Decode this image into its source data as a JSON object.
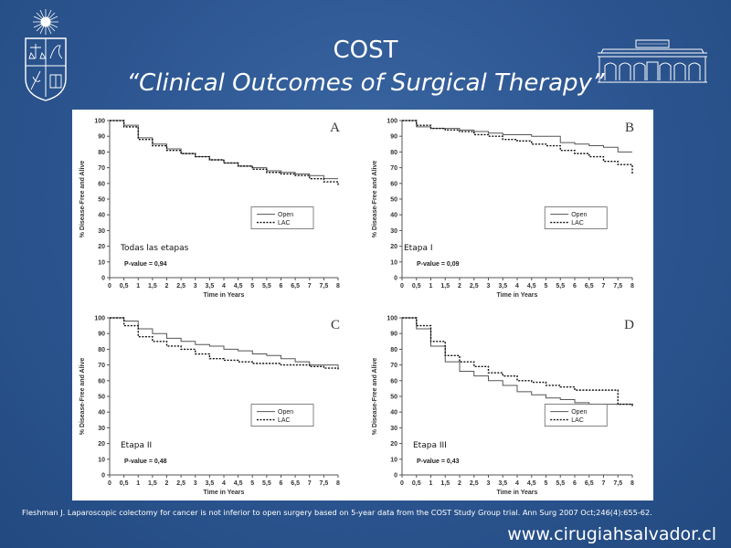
{
  "title": "COST",
  "subtitle": "“Clinical Outcomes of Surgical Therapy”",
  "citation": "Fleshman J. Laparoscopic colectomy for cancer is not inferior to open surgery based on 5-year data from the COST Study Group trial. Ann Surg 2007 Oct;246(4):655-62.",
  "website": "www.cirugiahsalvador.cl",
  "colors": {
    "background": "#2c5590",
    "panel": "#ffffff",
    "text": "#ffffff"
  },
  "chart_data": [
    {
      "type": "line",
      "panel": "A",
      "stage_label": "Todas las etapas",
      "p_value": "P-value = 0,94",
      "xlabel": "Time in Years",
      "ylabel": "% Disease-Free and Alive",
      "xlim": [
        0,
        8
      ],
      "ylim": [
        0,
        100
      ],
      "x_ticks": [
        "0",
        "0,5",
        "1",
        "1,5",
        "2",
        "2,5",
        "3",
        "3,5",
        "4",
        "4,5",
        "5",
        "5,5",
        "6",
        "6,5",
        "7",
        "7,5",
        "8"
      ],
      "y_ticks": [
        "0",
        "10",
        "20",
        "30",
        "40",
        "50",
        "60",
        "70",
        "80",
        "90",
        "100"
      ],
      "legend_position": "center-right",
      "series": [
        {
          "name": "Open",
          "style": "solid",
          "x": [
            0,
            0.5,
            1,
            1.5,
            2,
            2.5,
            3,
            3.5,
            4,
            4.5,
            5,
            5.5,
            6,
            6.5,
            7,
            7.5,
            8
          ],
          "y": [
            100,
            97,
            89,
            85,
            82,
            79,
            77,
            75,
            73,
            71,
            70,
            68,
            67,
            66,
            65,
            63,
            63
          ]
        },
        {
          "name": "LAC",
          "style": "dotted",
          "x": [
            0,
            0.5,
            1,
            1.5,
            2,
            2.5,
            3,
            3.5,
            4,
            4.5,
            5,
            5.5,
            6,
            6.5,
            7,
            7.5,
            8
          ],
          "y": [
            100,
            96,
            88,
            84,
            81,
            79,
            77,
            75,
            73,
            71,
            69,
            67,
            66,
            65,
            63,
            61,
            59
          ]
        }
      ]
    },
    {
      "type": "line",
      "panel": "B",
      "stage_label": "Etapa I",
      "p_value": "P-value = 0,09",
      "xlabel": "Time in Years",
      "ylabel": "% Disease-Free and Alive",
      "xlim": [
        0,
        8
      ],
      "ylim": [
        0,
        100
      ],
      "x_ticks": [
        "0",
        "0,5",
        "1",
        "1,5",
        "2",
        "2,5",
        "3",
        "3,5",
        "4",
        "4,5",
        "5",
        "5,5",
        "6",
        "6,5",
        "7",
        "7,5",
        "8"
      ],
      "y_ticks": [
        "0",
        "10",
        "20",
        "30",
        "40",
        "50",
        "60",
        "70",
        "80",
        "90",
        "100"
      ],
      "legend_position": "center-right",
      "series": [
        {
          "name": "Open",
          "style": "solid",
          "x": [
            0,
            0.5,
            1,
            1.5,
            2,
            2.5,
            3,
            3.5,
            4,
            4.5,
            5,
            5.5,
            6,
            6.5,
            7,
            7.5,
            8
          ],
          "y": [
            100,
            96,
            95,
            95,
            94,
            93,
            92,
            91,
            91,
            90,
            90,
            86,
            85,
            84,
            83,
            80,
            80
          ]
        },
        {
          "name": "LAC",
          "style": "dotted",
          "x": [
            0,
            0.5,
            1,
            1.5,
            2,
            2.5,
            3,
            3.5,
            4,
            4.5,
            5,
            5.5,
            6,
            6.5,
            7,
            7.5,
            8
          ],
          "y": [
            100,
            97,
            95,
            94,
            93,
            91,
            90,
            88,
            87,
            85,
            84,
            81,
            79,
            77,
            74,
            72,
            66
          ]
        }
      ]
    },
    {
      "type": "line",
      "panel": "C",
      "stage_label": "Etapa II",
      "p_value": "P-value = 0,48",
      "xlabel": "Time in Years",
      "ylabel": "% Disease-Free and Alive",
      "xlim": [
        0,
        8
      ],
      "ylim": [
        0,
        100
      ],
      "x_ticks": [
        "0",
        "0,5",
        "1",
        "1,5",
        "2",
        "2,5",
        "3",
        "3,5",
        "4",
        "4,5",
        "5",
        "5,5",
        "6",
        "6,5",
        "7",
        "7,5",
        "8"
      ],
      "y_ticks": [
        "0",
        "10",
        "20",
        "30",
        "40",
        "50",
        "60",
        "70",
        "80",
        "90",
        "100"
      ],
      "legend_position": "center-right",
      "series": [
        {
          "name": "Open",
          "style": "solid",
          "x": [
            0,
            0.5,
            1,
            1.5,
            2,
            2.5,
            3,
            3.5,
            4,
            4.5,
            5,
            5.5,
            6,
            6.5,
            7,
            7.5,
            8
          ],
          "y": [
            100,
            98,
            93,
            90,
            87,
            85,
            83,
            82,
            80,
            79,
            77,
            76,
            74,
            72,
            70,
            70,
            68
          ]
        },
        {
          "name": "LAC",
          "style": "dotted",
          "x": [
            0,
            0.5,
            1,
            1.5,
            2,
            2.5,
            3,
            3.5,
            4,
            4.5,
            5,
            5.5,
            6,
            6.5,
            7,
            7.5,
            8
          ],
          "y": [
            100,
            95,
            88,
            85,
            82,
            80,
            77,
            74,
            73,
            72,
            71,
            71,
            70,
            70,
            69,
            68,
            67
          ]
        }
      ]
    },
    {
      "type": "line",
      "panel": "D",
      "stage_label": "Etapa III",
      "p_value": "P-value = 0,43",
      "xlabel": "Time in Years",
      "ylabel": "% Disease-Free and Alive",
      "xlim": [
        0,
        8
      ],
      "ylim": [
        0,
        100
      ],
      "x_ticks": [
        "0",
        "0,5",
        "1",
        "1,5",
        "2",
        "2,5",
        "3",
        "3,5",
        "4",
        "4,5",
        "5",
        "5,5",
        "6",
        "6,5",
        "7",
        "7,5",
        "8"
      ],
      "y_ticks": [
        "0",
        "10",
        "20",
        "30",
        "40",
        "50",
        "60",
        "70",
        "80",
        "90",
        "100"
      ],
      "legend_position": "center-right",
      "series": [
        {
          "name": "Open",
          "style": "solid",
          "x": [
            0,
            0.5,
            1,
            1.5,
            2,
            2.5,
            3,
            3.5,
            4,
            4.5,
            5,
            5.5,
            6,
            6.5,
            7,
            7.5,
            8
          ],
          "y": [
            100,
            93,
            82,
            72,
            66,
            63,
            60,
            57,
            53,
            51,
            49,
            48,
            46,
            45,
            45,
            45,
            45
          ]
        },
        {
          "name": "LAC",
          "style": "dotted",
          "x": [
            0,
            0.5,
            1,
            1.5,
            2,
            2.5,
            3,
            3.5,
            4,
            4.5,
            5,
            5.5,
            6,
            6.5,
            7,
            7.5,
            8
          ],
          "y": [
            100,
            95,
            85,
            76,
            72,
            69,
            65,
            63,
            60,
            59,
            57,
            56,
            54,
            54,
            54,
            45,
            43
          ]
        }
      ]
    }
  ]
}
